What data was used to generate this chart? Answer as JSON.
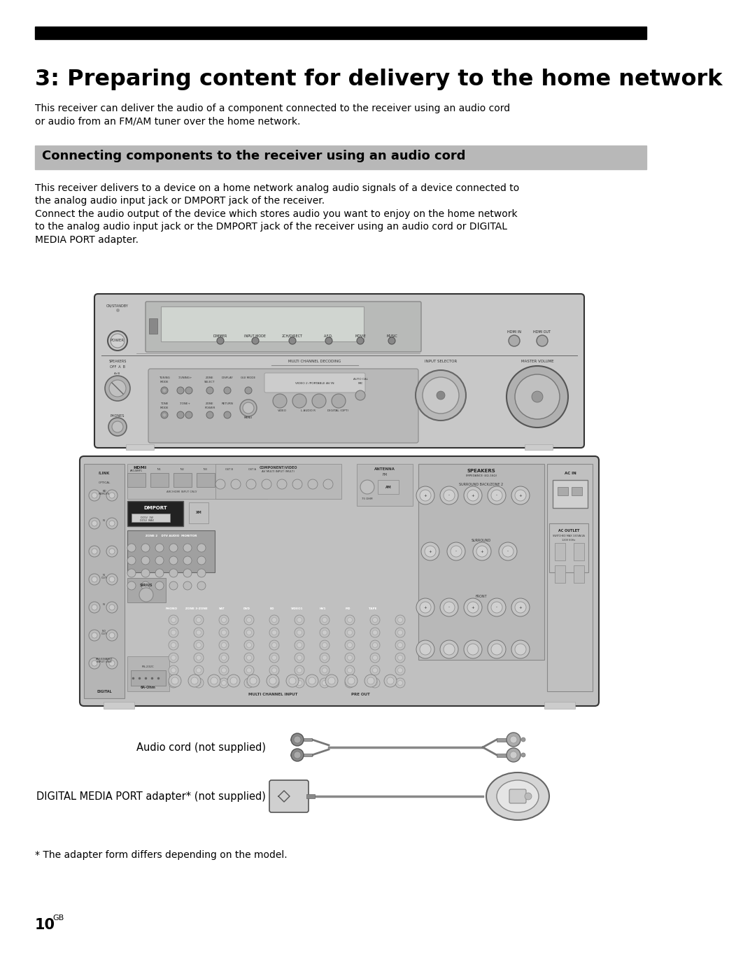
{
  "bg_color": "#ffffff",
  "title_bar_color": "#000000",
  "title_text": "3: Preparing content for delivery to the home network",
  "title_fontsize": 23,
  "title_color": "#000000",
  "subtitle_bar_color": "#b8b8b8",
  "subtitle_text": "Connecting components to the receiver using an audio cord",
  "subtitle_fontsize": 13,
  "subtitle_text_color": "#000000",
  "body_text1": "This receiver can deliver the audio of a component connected to the receiver using an audio cord\nor audio from an FM/AM tuner over the home network.",
  "body_text2": "This receiver delivers to a device on a home network analog audio signals of a device connected to\nthe analog audio input jack or DMPORT jack of the receiver.\nConnect the audio output of the device which stores audio you want to enjoy on the home network\nto the analog audio input jack or the DMPORT jack of the receiver using an audio cord or DIGITAL\nMEDIA PORT adapter.",
  "footnote": "* The adapter form differs depending on the model.",
  "page_number": "10",
  "page_suffix": "GB",
  "body_fontsize": 10.0,
  "label_audio_cord": "Audio cord (not supplied)",
  "label_dmport": "DIGITAL MEDIA PORT adapter* (not supplied)",
  "panel_color": "#c8c8c8",
  "panel_dark": "#a0a0a0",
  "panel_edge": "#555555",
  "panel_light": "#e0e0e0"
}
